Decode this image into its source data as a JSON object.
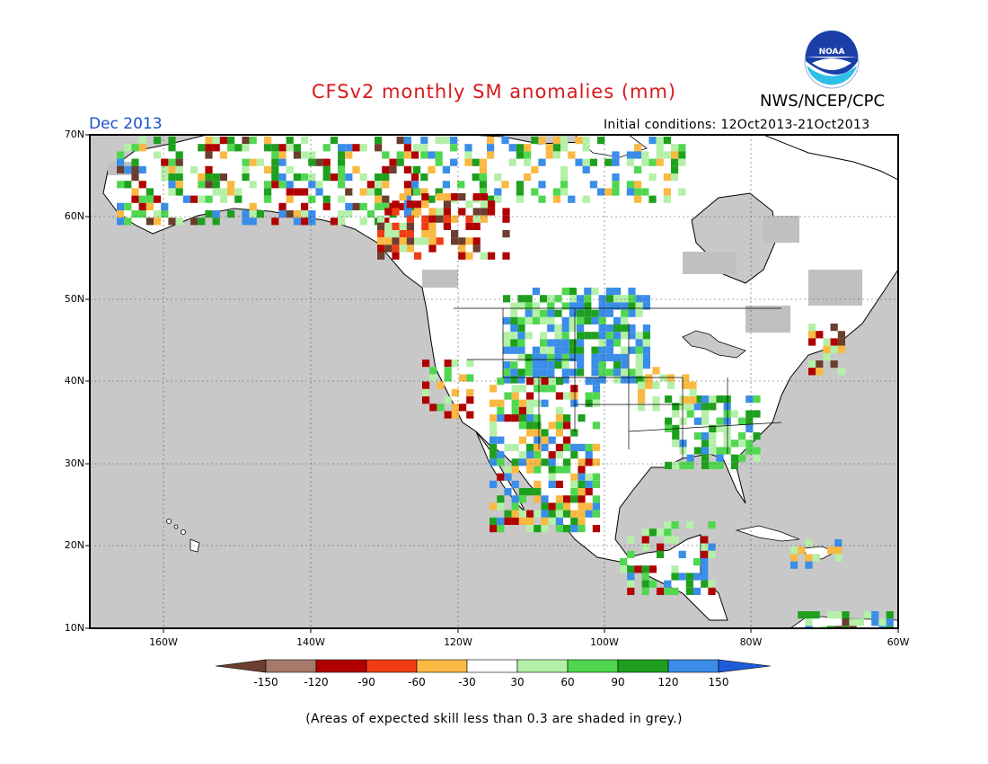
{
  "header": {
    "title": "CFSv2 monthly SM anomalies (mm)",
    "agency": "NWS/NCEP/CPC",
    "valid_month": "Dec 2013",
    "initial_conditions": "Initial conditions: 12Oct2013-21Oct2013",
    "logo_text": "NOAA"
  },
  "map": {
    "projection": "lat-lon",
    "lon_range": [
      -172,
      -60
    ],
    "lat_range": [
      10,
      70
    ],
    "lat_labels": [
      "70N",
      "60N",
      "50N",
      "40N",
      "30N",
      "20N",
      "10N"
    ],
    "lon_labels": [
      "160W",
      "140W",
      "120W",
      "100W",
      "80W",
      "60W"
    ],
    "colors": {
      "ocean": "#c8c8c8",
      "land": "#ffffff",
      "low_skill_grey": "#c0c0c0",
      "coastline": "#000000"
    }
  },
  "colorbar": {
    "levels": [
      "-150",
      "-120",
      "-90",
      "-60",
      "-30",
      "30",
      "60",
      "90",
      "120",
      "150"
    ],
    "colors": [
      "#6b3e2e",
      "#a57a6a",
      "#b00000",
      "#f03c14",
      "#f9b942",
      "#ffffff",
      "#b4f0a8",
      "#50d750",
      "#1ea01e",
      "#3a8de8",
      "#1f5ad8"
    ]
  },
  "footnote": "(Areas of expected skill less than 0.3 are shaded in grey.)"
}
